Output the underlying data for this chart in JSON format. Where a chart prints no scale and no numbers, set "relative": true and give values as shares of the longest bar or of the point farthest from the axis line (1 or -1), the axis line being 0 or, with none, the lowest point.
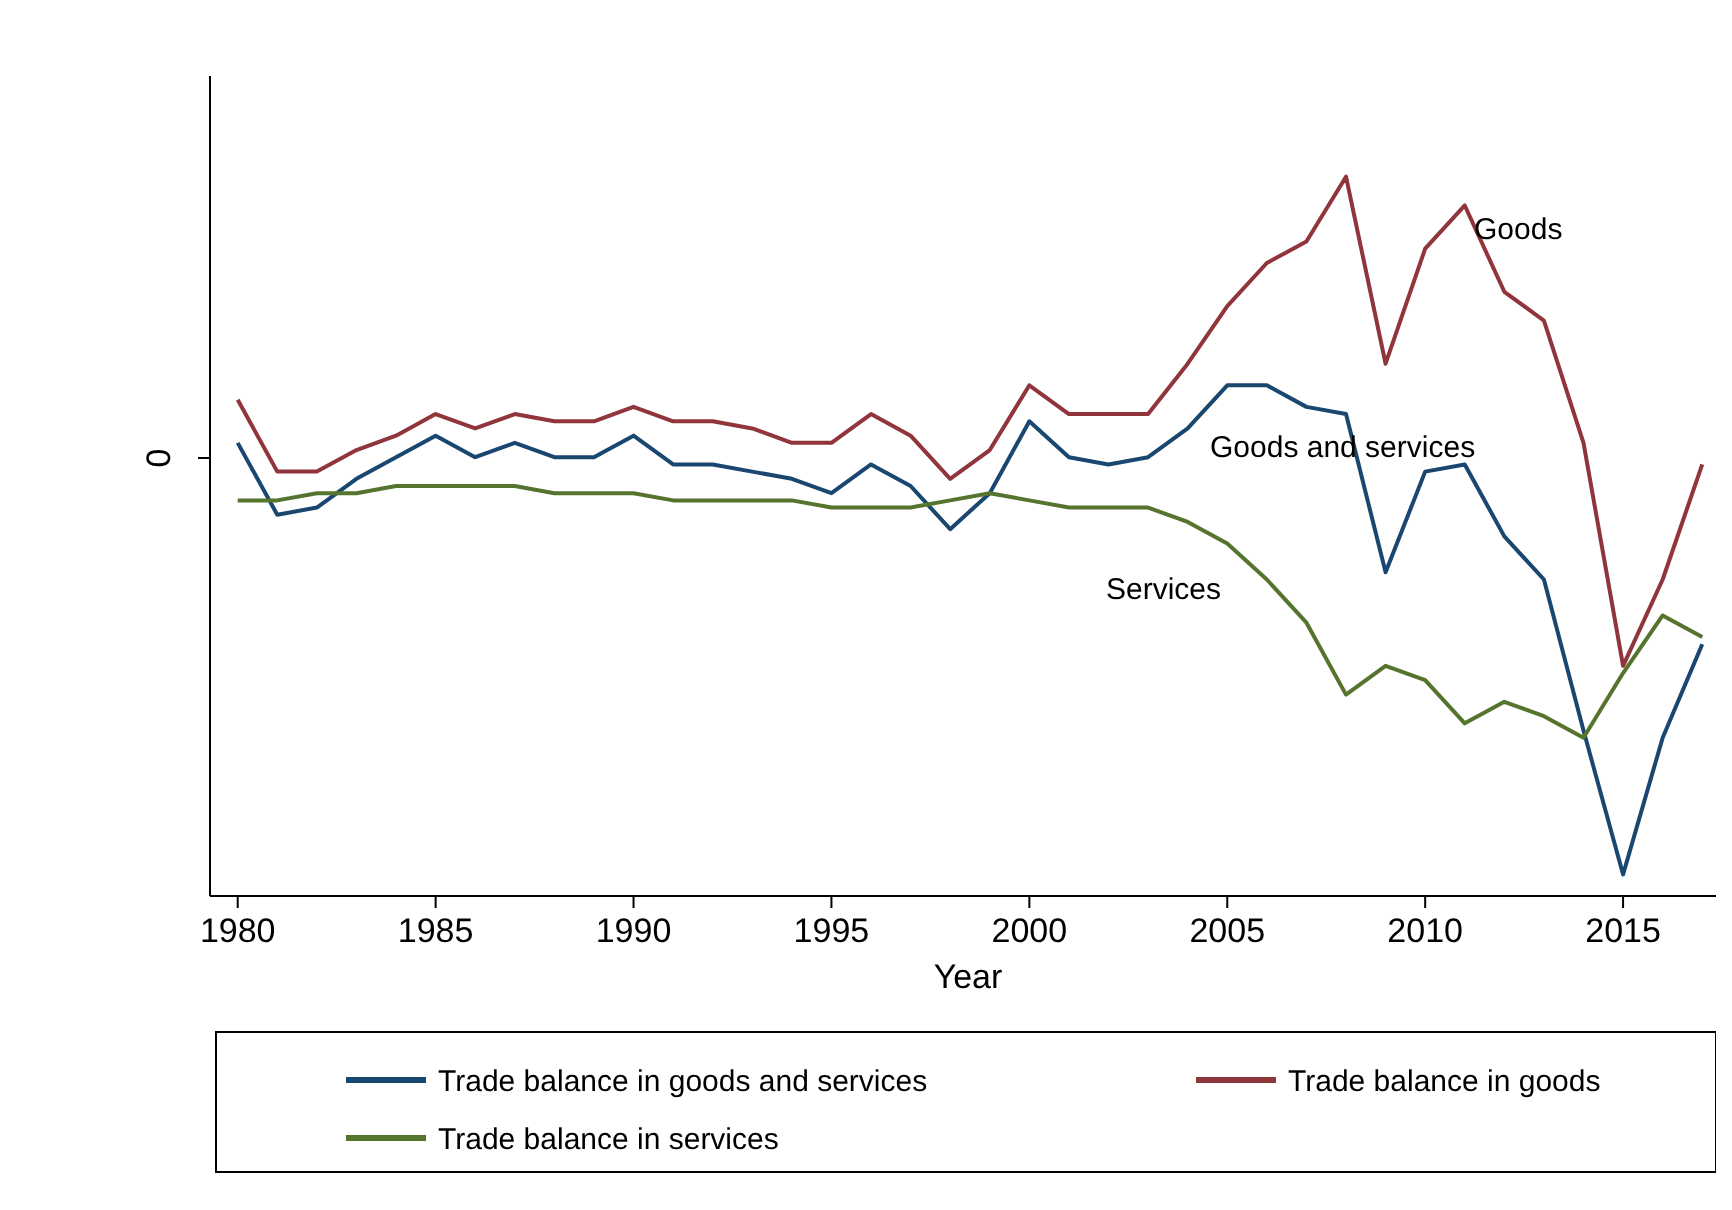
{
  "chart_data": {
    "type": "line",
    "relative": true,
    "xlabel": "Year",
    "x": [
      1980,
      1981,
      1982,
      1983,
      1984,
      1985,
      1986,
      1987,
      1988,
      1989,
      1990,
      1991,
      1992,
      1993,
      1994,
      1995,
      1996,
      1997,
      1998,
      1999,
      2000,
      2001,
      2002,
      2003,
      2004,
      2005,
      2006,
      2007,
      2008,
      2009,
      2010,
      2011,
      2012,
      2013,
      2014,
      2015,
      2016,
      2017
    ],
    "xlim": [
      1979.3,
      2017.6
    ],
    "xticks": [
      1980,
      1985,
      1990,
      1995,
      2000,
      2005,
      2010,
      2015
    ],
    "series": [
      {
        "name": "Trade balance in goods and services",
        "color": "#1a476f",
        "values": [
          0.63,
          0.53,
          0.54,
          0.58,
          0.61,
          0.64,
          0.61,
          0.63,
          0.61,
          0.61,
          0.64,
          0.6,
          0.6,
          0.59,
          0.58,
          0.56,
          0.6,
          0.57,
          0.51,
          0.56,
          0.66,
          0.61,
          0.6,
          0.61,
          0.65,
          0.71,
          0.71,
          0.68,
          0.67,
          0.45,
          0.59,
          0.6,
          0.5,
          0.44,
          0.23,
          0.03,
          0.22,
          0.35
        ]
      },
      {
        "name": "Trade balance in goods",
        "color": "#90353b",
        "values": [
          0.69,
          0.59,
          0.59,
          0.62,
          0.64,
          0.67,
          0.65,
          0.67,
          0.66,
          0.66,
          0.68,
          0.66,
          0.66,
          0.65,
          0.63,
          0.63,
          0.67,
          0.64,
          0.58,
          0.62,
          0.71,
          0.67,
          0.67,
          0.67,
          0.74,
          0.82,
          0.88,
          0.91,
          1,
          0.74,
          0.9,
          0.96,
          0.84,
          0.8,
          0.63,
          0.32,
          0.44,
          0.6
        ]
      },
      {
        "name": "Trade balance in services",
        "color": "#55752f",
        "values": [
          0.55,
          0.55,
          0.56,
          0.56,
          0.57,
          0.57,
          0.57,
          0.57,
          0.56,
          0.56,
          0.56,
          0.55,
          0.55,
          0.55,
          0.55,
          0.54,
          0.54,
          0.54,
          0.55,
          0.56,
          0.55,
          0.54,
          0.54,
          0.54,
          0.52,
          0.49,
          0.44,
          0.38,
          0.28,
          0.32,
          0.3,
          0.24,
          0.27,
          0.25,
          0.22,
          0.31,
          0.39,
          0.36
        ]
      }
    ],
    "annotations": [
      "0",
      "Goods",
      "Goods and services",
      "Services"
    ],
    "legend": "bottom",
    "line_style": "solid",
    "marker": "none"
  }
}
